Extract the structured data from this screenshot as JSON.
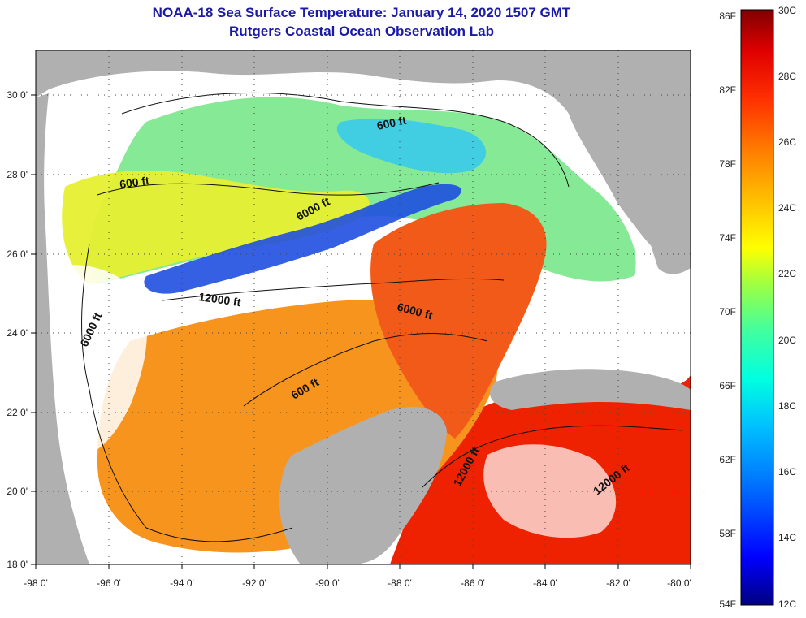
{
  "header": {
    "title": "NOAA-18 Sea Surface Temperature:  January 14, 2020 1507 GMT",
    "subtitle": "Rutgers Coastal Ocean Observation Lab"
  },
  "map": {
    "lat_ticks": [
      "30 0'",
      "28 0'",
      "26 0'",
      "24 0'",
      "22 0'",
      "20 0'",
      "18 0'"
    ],
    "lon_ticks": [
      "-98 0'",
      "-96 0'",
      "-94 0'",
      "-92 0'",
      "-90 0'",
      "-88 0'",
      "-86 0'",
      "-84 0'",
      "-82 0'",
      "-80 0'"
    ],
    "lat_range": [
      18,
      31
    ],
    "lon_range": [
      -98,
      -80
    ],
    "contour_labels": [
      "600 ft",
      "600 ft",
      "6000 ft",
      "12000 ft",
      "6000 ft",
      "6000 ft",
      "600 ft",
      "12000 ft",
      "12000 ft"
    ]
  },
  "colorbar": {
    "fahrenheit": [
      "86F",
      "82F",
      "78F",
      "74F",
      "70F",
      "66F",
      "62F",
      "58F",
      "54F"
    ],
    "celsius": [
      "30C",
      "28C",
      "26C",
      "24C",
      "22C",
      "20C",
      "18C",
      "16C",
      "14C",
      "12C"
    ],
    "colors": [
      "#000080",
      "#0000ff",
      "#0070ff",
      "#00c0ff",
      "#00ffe0",
      "#40ffa0",
      "#a0ff40",
      "#ffff00",
      "#ffc000",
      "#ff8000",
      "#ff3000",
      "#e00000",
      "#800000"
    ]
  },
  "colors": {
    "land": "#b0b0b0",
    "cloud": "#ffffff",
    "title": "#1a1aa6"
  }
}
